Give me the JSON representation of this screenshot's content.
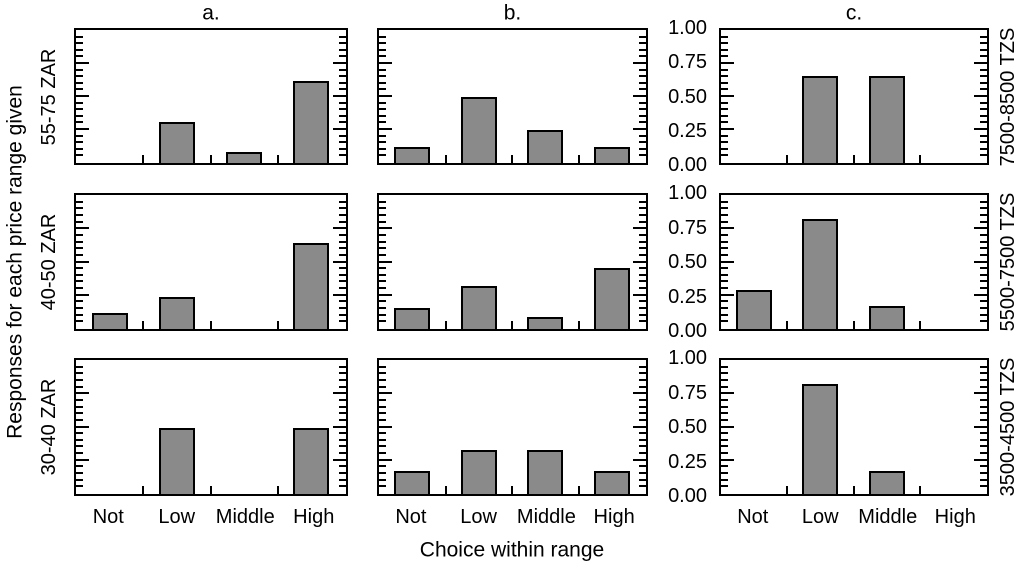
{
  "figure": {
    "column_titles": [
      "a.",
      "b.",
      "c."
    ],
    "x_axis_title": "Choice within range",
    "y_axis_title": "Responses for each price range given",
    "y_tick_labels": [
      "1.00",
      "0.75",
      "0.50",
      "0.25",
      "0.00"
    ],
    "bar_fill_color": "#8a8a8a",
    "line_color": "#000000",
    "background_color": "#ffffff"
  },
  "chart_data": {
    "type": "bar",
    "layout": "3x3 trellis; columns a/b/c, rows are price ranges; y scale labeled once per row, left of column c",
    "categories": [
      "Not",
      "Low",
      "Middle",
      "High"
    ],
    "xlabel": "Choice within range",
    "ylabel": "Responses for each price range given",
    "ylim": [
      0,
      1
    ],
    "y_major_ticks": [
      0,
      0.25,
      0.5,
      0.75,
      1.0
    ],
    "y_minor_tick_step": 0.05,
    "grid": false,
    "rows": [
      {
        "left_label": "55-75 ZAR",
        "right_label": "7500-8500 TZS",
        "panels": [
          {
            "column": "a.",
            "values": [
              0,
              0.31,
              0.08,
              0.62
            ]
          },
          {
            "column": "b.",
            "values": [
              0.12,
              0.5,
              0.25,
              0.12
            ]
          },
          {
            "column": "c.",
            "values": [
              0,
              0.66,
              0.66,
              0
            ]
          }
        ]
      },
      {
        "left_label": "40-50 ZAR",
        "right_label": "5500-7500 TZS",
        "panels": [
          {
            "column": "a.",
            "values": [
              0.12,
              0.24,
              0,
              0.65
            ]
          },
          {
            "column": "b.",
            "values": [
              0.16,
              0.32,
              0.09,
              0.46
            ]
          },
          {
            "column": "c.",
            "values": [
              0.29,
              0.83,
              0.17,
              0
            ]
          }
        ]
      },
      {
        "left_label": "30-40 ZAR",
        "right_label": "3500-4500 TZS",
        "panels": [
          {
            "column": "a.",
            "values": [
              0,
              0.5,
              0,
              0.5
            ]
          },
          {
            "column": "b.",
            "values": [
              0.17,
              0.33,
              0.33,
              0.17
            ]
          },
          {
            "column": "c.",
            "values": [
              0,
              0.83,
              0.17,
              0
            ]
          }
        ]
      }
    ]
  }
}
